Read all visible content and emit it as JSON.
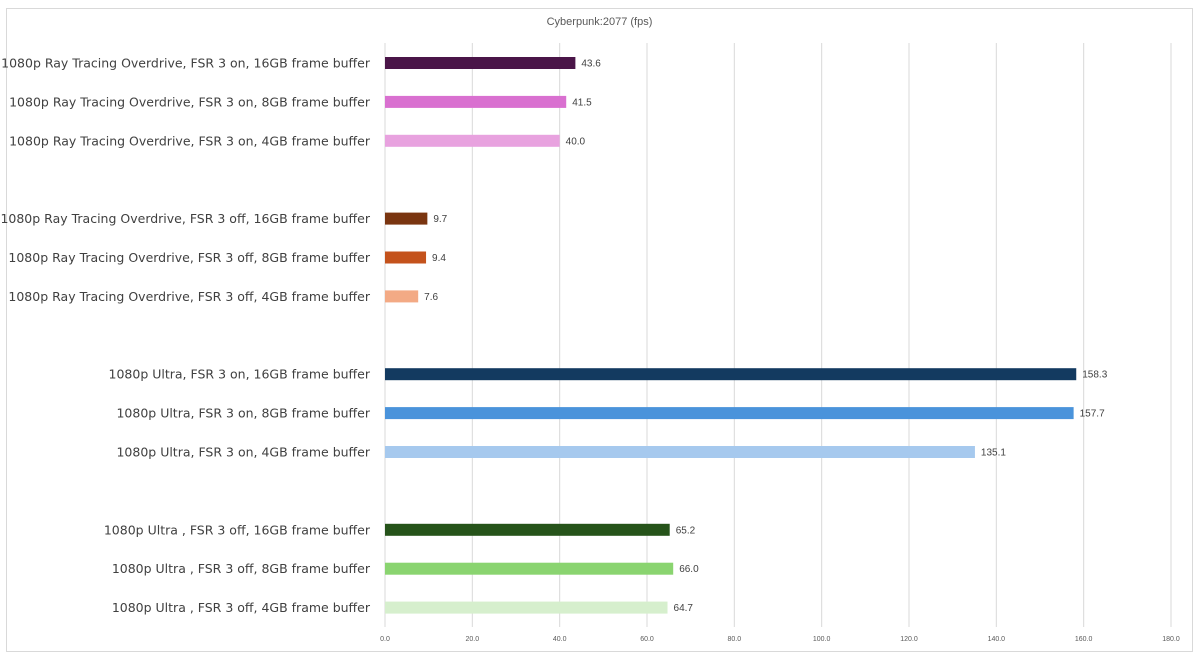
{
  "chart_data": {
    "type": "bar",
    "orientation": "horizontal",
    "title": "Cyberpunk:2077 (fps)",
    "xlim": [
      0,
      180
    ],
    "xticks": [
      "0.0",
      "20.0",
      "40.0",
      "60.0",
      "80.0",
      "100.0",
      "120.0",
      "140.0",
      "160.0",
      "180.0"
    ],
    "grid": true,
    "legend": "none",
    "groups": [
      {
        "bars": [
          {
            "category": "1080p Ray Tracing Overdrive, FSR 3 on, 16GB frame buffer",
            "value": 43.6,
            "label": "43.6",
            "color": "#4a1548"
          },
          {
            "category": "1080p Ray Tracing Overdrive, FSR 3 on, 8GB frame buffer",
            "value": 41.5,
            "label": "41.5",
            "color": "#d970d0"
          },
          {
            "category": "1080p Ray Tracing Overdrive, FSR 3 on, 4GB frame buffer",
            "value": 40.0,
            "label": "40.0",
            "color": "#e8a2df"
          }
        ]
      },
      {
        "bars": [
          {
            "category": "1080p Ray Tracing Overdrive, FSR 3 off, 16GB frame buffer",
            "value": 9.7,
            "label": "9.7",
            "color": "#7a3510"
          },
          {
            "category": "1080p Ray Tracing Overdrive, FSR 3 off, 8GB frame buffer",
            "value": 9.4,
            "label": "9.4",
            "color": "#c4521c"
          },
          {
            "category": "1080p Ray Tracing Overdrive, FSR 3 off, 4GB frame buffer",
            "value": 7.6,
            "label": "7.6",
            "color": "#f3aa85"
          }
        ]
      },
      {
        "bars": [
          {
            "category": "1080p Ultra, FSR 3 on, 16GB frame buffer",
            "value": 158.3,
            "label": "158.3",
            "color": "#133a60"
          },
          {
            "category": "1080p Ultra, FSR 3 on, 8GB frame buffer",
            "value": 157.7,
            "label": "157.7",
            "color": "#4a93db"
          },
          {
            "category": "1080p Ultra, FSR 3 on, 4GB frame buffer",
            "value": 135.1,
            "label": "135.1",
            "color": "#a6c9ee"
          }
        ]
      },
      {
        "bars": [
          {
            "category": "1080p Ultra , FSR 3 off, 16GB frame buffer",
            "value": 65.2,
            "label": "65.2",
            "color": "#26531a"
          },
          {
            "category": "1080p Ultra , FSR 3 off, 8GB frame buffer",
            "value": 66.0,
            "label": "66.0",
            "color": "#8ad470"
          },
          {
            "category": "1080p Ultra , FSR 3 off, 4GB frame buffer",
            "value": 64.7,
            "label": "64.7",
            "color": "#d6efcd"
          }
        ]
      }
    ]
  }
}
